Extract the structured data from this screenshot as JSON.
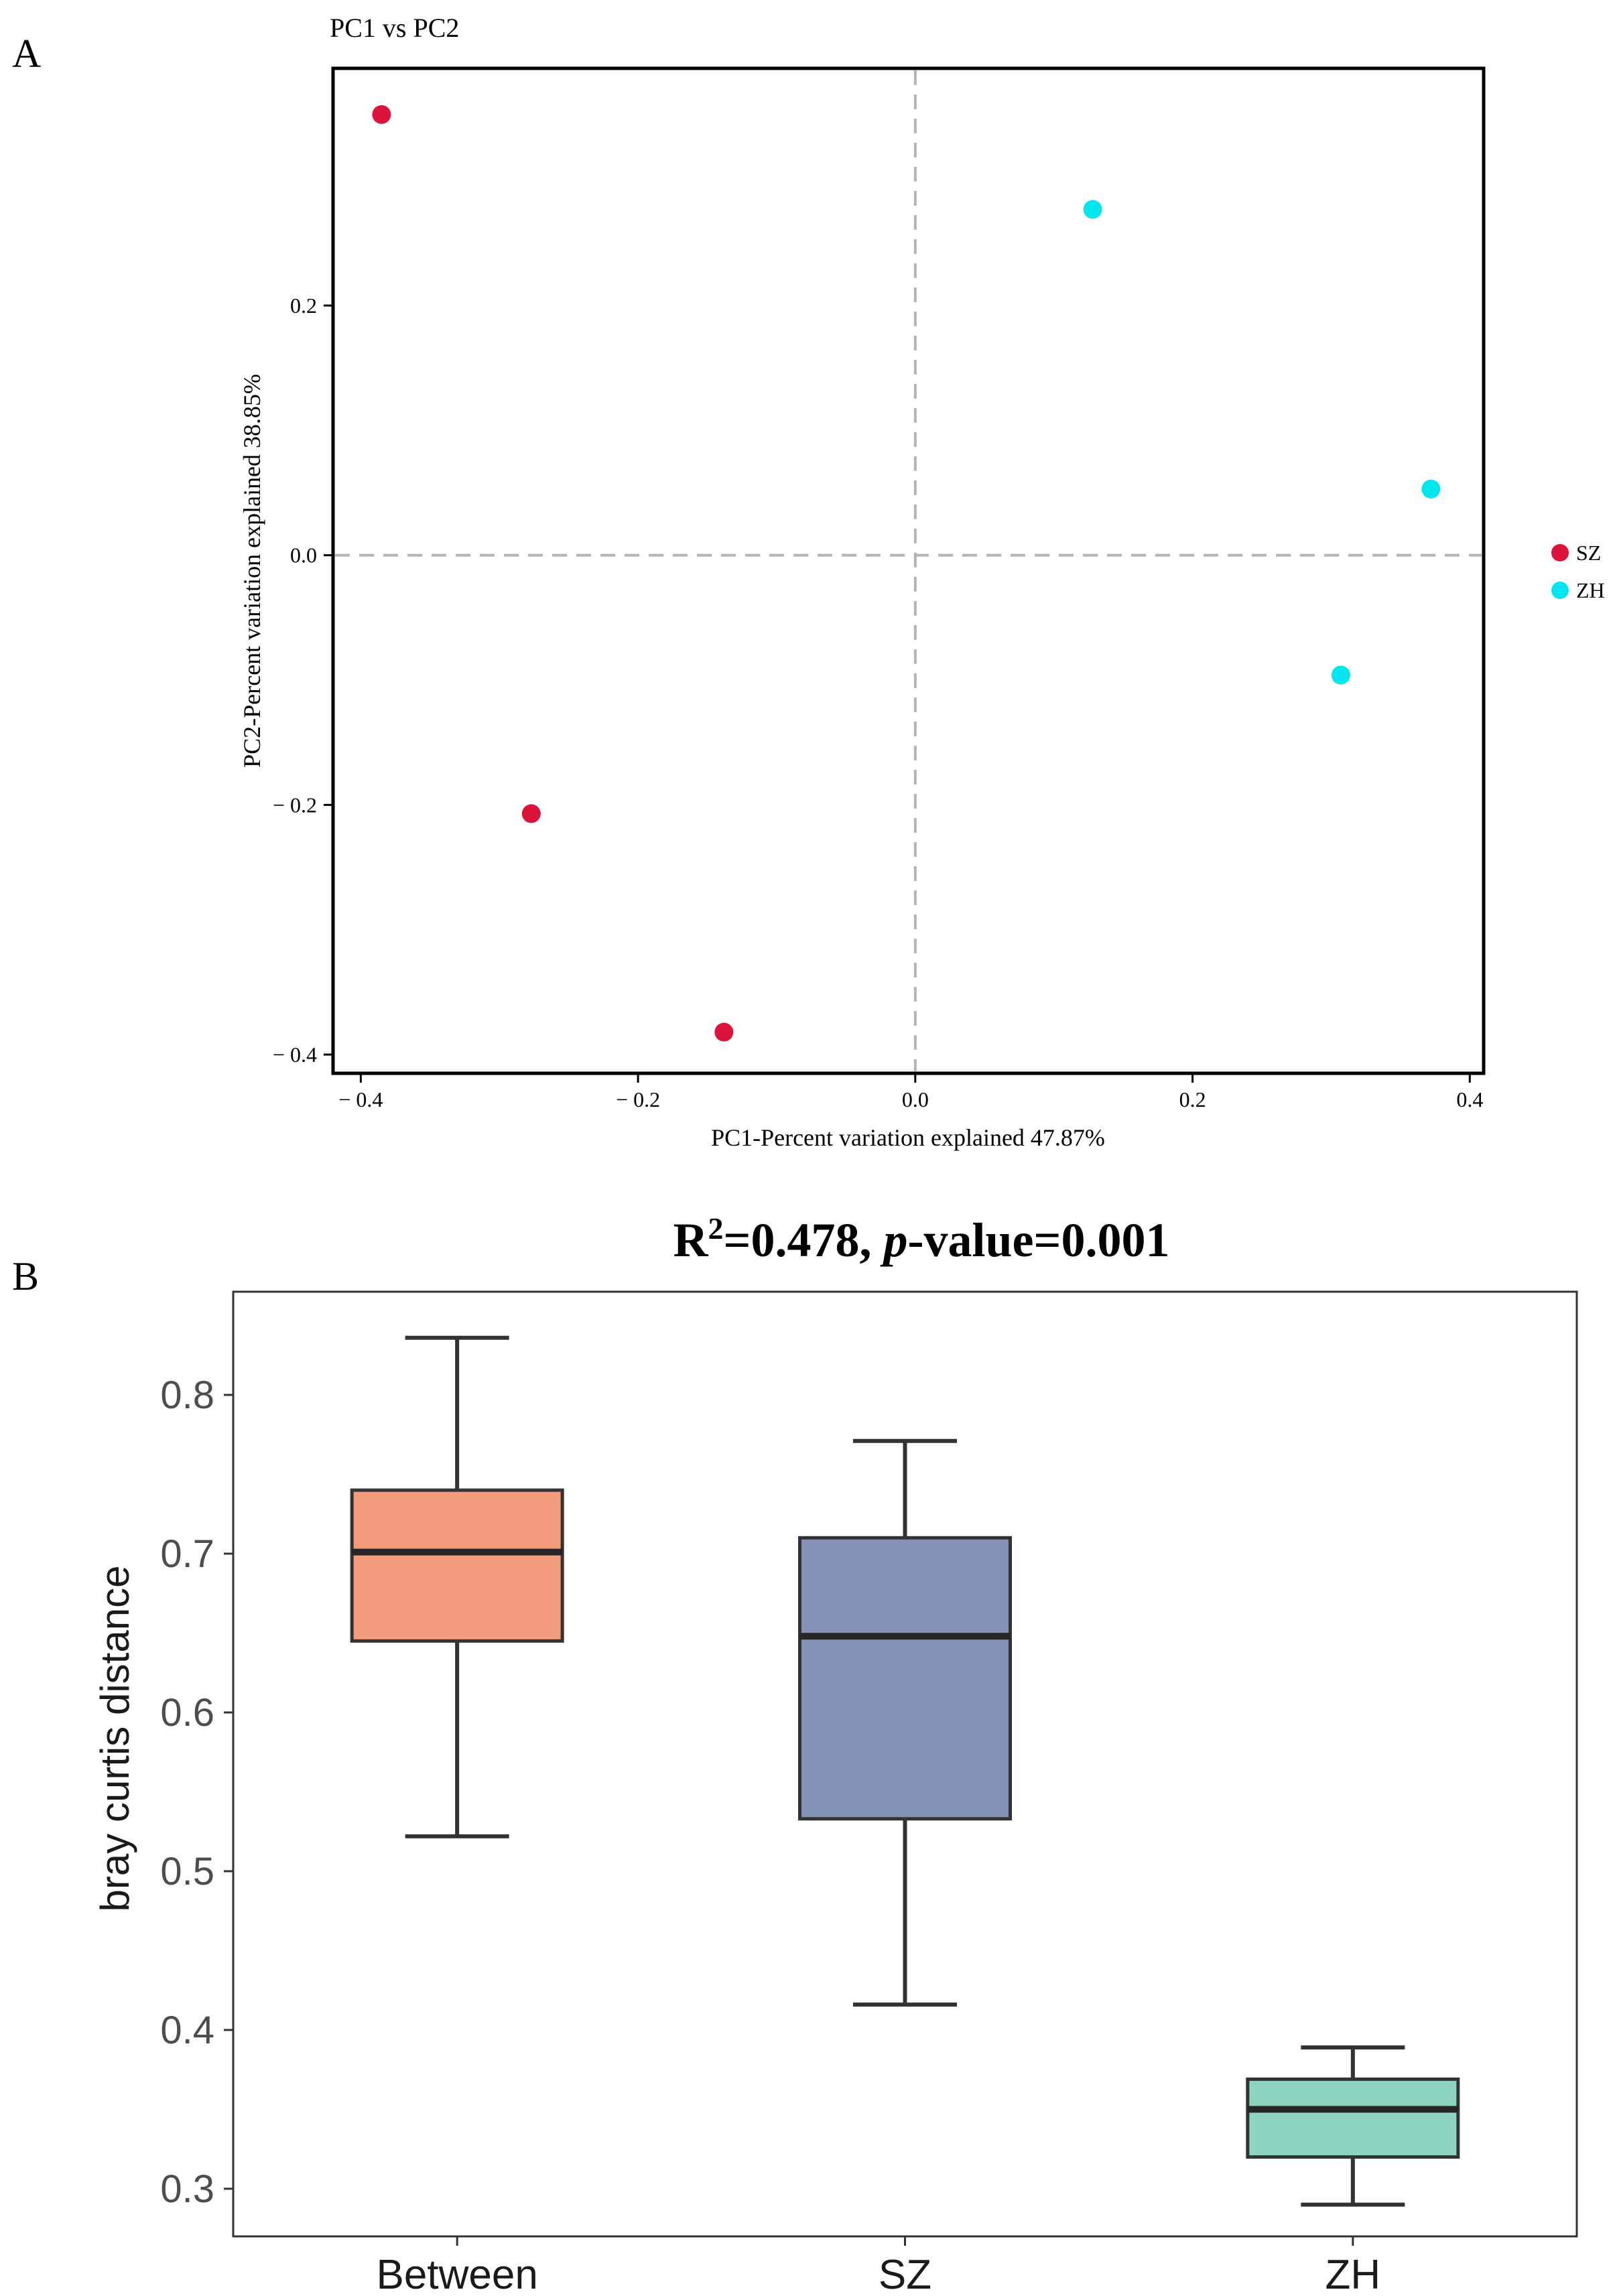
{
  "panel_labels": {
    "a": "A",
    "b": "B"
  },
  "chart_data": [
    {
      "type": "scatter",
      "title": "PC1 vs PC2",
      "xlabel": "PC1-Percent variation explained 47.87%",
      "ylabel": "PC2-Percent variation explained 38.85%",
      "xlim": [
        -0.42,
        0.41
      ],
      "ylim": [
        -0.415,
        0.39
      ],
      "xticks": [
        -0.4,
        -0.2,
        0.0,
        0.2,
        0.4
      ],
      "yticks": [
        -0.4,
        -0.2,
        0.0,
        0.2
      ],
      "xtick_labels": [
        "− 0.4",
        "− 0.2",
        "0.0",
        "0.2",
        "0.4"
      ],
      "ytick_labels": [
        "− 0.4",
        "− 0.2",
        "0.0",
        "0.2"
      ],
      "grid": false,
      "reference_lines": {
        "x": 0,
        "y": 0,
        "style": "dashed"
      },
      "legend_position": "right",
      "series": [
        {
          "name": "SZ",
          "color": "#DC143C",
          "points": [
            [
              -0.385,
              0.353
            ],
            [
              -0.277,
              -0.207
            ],
            [
              -0.138,
              -0.382
            ]
          ]
        },
        {
          "name": "ZH",
          "color": "#00E5EE",
          "points": [
            [
              0.128,
              0.277
            ],
            [
              0.372,
              0.053
            ],
            [
              0.307,
              -0.096
            ]
          ]
        }
      ]
    },
    {
      "type": "box",
      "title_parts": {
        "r": "R",
        "sup": "2",
        "mid": "=0.478, ",
        "p": "p",
        "rest": "-value=0.001"
      },
      "ylabel": "bray curtis distance",
      "xlabel": "",
      "ylim": [
        0.27,
        0.865
      ],
      "yticks": [
        0.3,
        0.4,
        0.5,
        0.6,
        0.7,
        0.8
      ],
      "ytick_labels": [
        "0.3",
        "0.4",
        "0.5",
        "0.6",
        "0.7",
        "0.8"
      ],
      "grid": false,
      "categories": [
        "Between",
        "SZ",
        "ZH"
      ],
      "boxes": [
        {
          "name": "Between",
          "min": 0.522,
          "q1": 0.645,
          "median": 0.701,
          "q3": 0.74,
          "max": 0.836,
          "color": "#F29B7E"
        },
        {
          "name": "SZ",
          "min": 0.416,
          "q1": 0.533,
          "median": 0.648,
          "q3": 0.71,
          "max": 0.771,
          "color": "#8592B8"
        },
        {
          "name": "ZH",
          "min": 0.29,
          "q1": 0.32,
          "median": 0.35,
          "q3": 0.369,
          "max": 0.389,
          "color": "#8DD4C0"
        }
      ]
    }
  ]
}
